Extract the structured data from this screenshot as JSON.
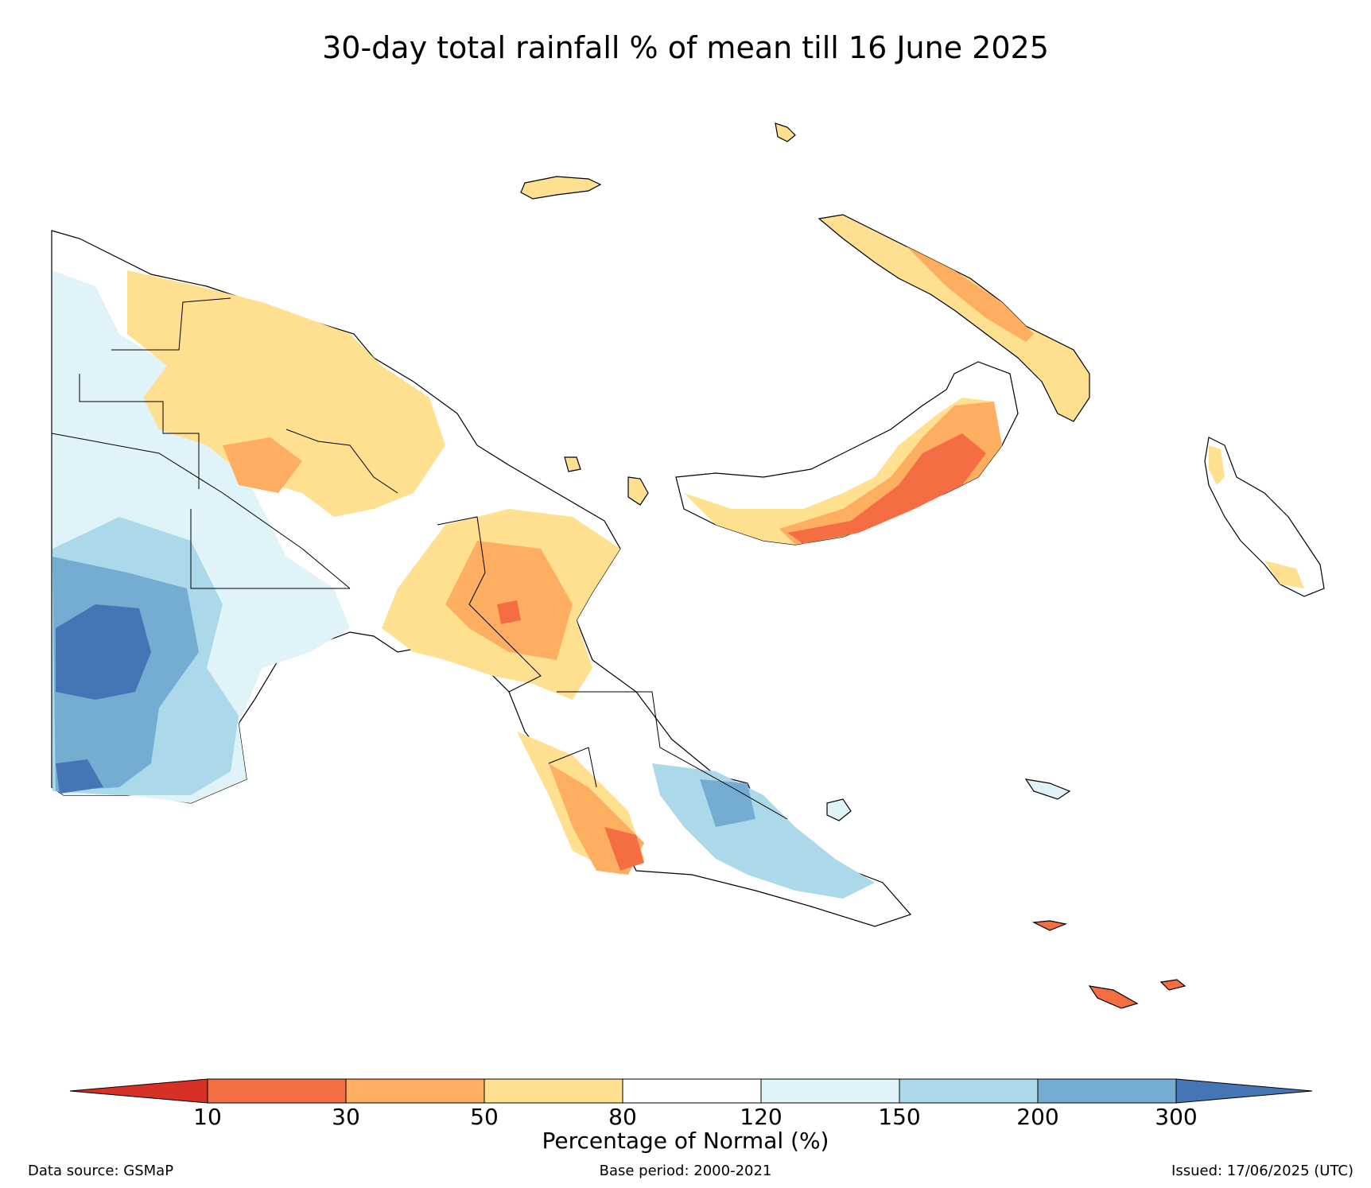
{
  "title": "30-day total rainfall % of mean till 16 June 2025",
  "legend": {
    "label": "Percentage of Normal (%)",
    "ticks": [
      "10",
      "30",
      "50",
      "80",
      "120",
      "150",
      "200",
      "300"
    ],
    "colors": [
      "#d73027",
      "#f46d43",
      "#fdae61",
      "#fee090",
      "#ffffff",
      "#e0f3f8",
      "#abd9e9",
      "#74add1",
      "#4575b4"
    ]
  },
  "footer": {
    "source": "Data source: GSMaP",
    "base_period": "Base period: 2000-2021",
    "issued": "Issued: 17/06/2025 (UTC)"
  }
}
